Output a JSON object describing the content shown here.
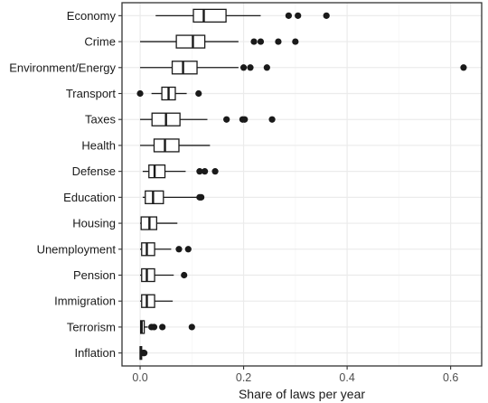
{
  "chart_data": {
    "type": "boxplot",
    "orientation": "horizontal",
    "title": "",
    "xlabel": "Share of laws per year",
    "ylabel": "",
    "xlim": [
      -0.035,
      0.66
    ],
    "xticks": [
      0.0,
      0.2,
      0.4,
      0.6
    ],
    "xtick_labels": [
      "0.0",
      "0.2",
      "0.4",
      "0.6"
    ],
    "grid": true,
    "legend": "none",
    "colors": {
      "panel_border": "#333333",
      "grid_major": "#ebebeb",
      "grid_minor": "#f5f5f5",
      "box_line": "#1a1a1a",
      "box_fill": "#ffffff",
      "outlier": "#1a1a1a",
      "label_text": "#1a1a1a",
      "tick_text": "#4d4d4d"
    },
    "categories": [
      "Economy",
      "Crime",
      "Environment/Energy",
      "Transport",
      "Taxes",
      "Health",
      "Defense",
      "Education",
      "Housing",
      "Unemployment",
      "Pension",
      "Immigration",
      "Terrorism",
      "Inflation"
    ],
    "boxes": [
      {
        "label": "Economy",
        "whisker_low": 0.03,
        "q1": 0.103,
        "median": 0.123,
        "q3": 0.166,
        "whisker_high": 0.233,
        "outliers": [
          0.287,
          0.305,
          0.36
        ]
      },
      {
        "label": "Crime",
        "whisker_low": 0.0,
        "q1": 0.07,
        "median": 0.102,
        "q3": 0.125,
        "whisker_high": 0.19,
        "outliers": [
          0.22,
          0.233,
          0.267,
          0.3
        ]
      },
      {
        "label": "Environment/Energy",
        "whisker_low": 0.0,
        "q1": 0.062,
        "median": 0.083,
        "q3": 0.11,
        "whisker_high": 0.19,
        "outliers": [
          0.2,
          0.213,
          0.245,
          0.625
        ]
      },
      {
        "label": "Transport",
        "whisker_low": 0.022,
        "q1": 0.042,
        "median": 0.055,
        "q3": 0.068,
        "whisker_high": 0.09,
        "outliers": [
          0.0,
          0.113
        ]
      },
      {
        "label": "Taxes",
        "whisker_low": 0.0,
        "q1": 0.023,
        "median": 0.05,
        "q3": 0.077,
        "whisker_high": 0.13,
        "outliers": [
          0.167,
          0.198,
          0.202,
          0.255
        ]
      },
      {
        "label": "Health",
        "whisker_low": 0.0,
        "q1": 0.027,
        "median": 0.048,
        "q3": 0.075,
        "whisker_high": 0.135,
        "outliers": []
      },
      {
        "label": "Defense",
        "whisker_low": 0.005,
        "q1": 0.017,
        "median": 0.028,
        "q3": 0.048,
        "whisker_high": 0.088,
        "outliers": [
          0.115,
          0.125,
          0.145
        ]
      },
      {
        "label": "Education",
        "whisker_low": 0.005,
        "q1": 0.01,
        "median": 0.025,
        "q3": 0.045,
        "whisker_high": 0.11,
        "outliers": [
          0.115,
          0.118
        ]
      },
      {
        "label": "Housing",
        "whisker_low": 0.0,
        "q1": 0.002,
        "median": 0.018,
        "q3": 0.032,
        "whisker_high": 0.072,
        "outliers": []
      },
      {
        "label": "Unemployment",
        "whisker_low": 0.0,
        "q1": 0.003,
        "median": 0.013,
        "q3": 0.028,
        "whisker_high": 0.06,
        "outliers": [
          0.075,
          0.093
        ]
      },
      {
        "label": "Pension",
        "whisker_low": 0.0,
        "q1": 0.003,
        "median": 0.013,
        "q3": 0.028,
        "whisker_high": 0.065,
        "outliers": [
          0.085
        ]
      },
      {
        "label": "Immigration",
        "whisker_low": 0.0,
        "q1": 0.003,
        "median": 0.013,
        "q3": 0.028,
        "whisker_high": 0.063,
        "outliers": []
      },
      {
        "label": "Terrorism",
        "whisker_low": 0.0,
        "q1": 0.001,
        "median": 0.003,
        "q3": 0.008,
        "whisker_high": 0.015,
        "outliers": [
          0.022,
          0.027,
          0.043,
          0.1
        ]
      },
      {
        "label": "Inflation",
        "whisker_low": 0.0,
        "q1": 0.0,
        "median": 0.001,
        "q3": 0.003,
        "whisker_high": 0.004,
        "outliers": [
          0.006,
          0.008
        ]
      }
    ]
  }
}
